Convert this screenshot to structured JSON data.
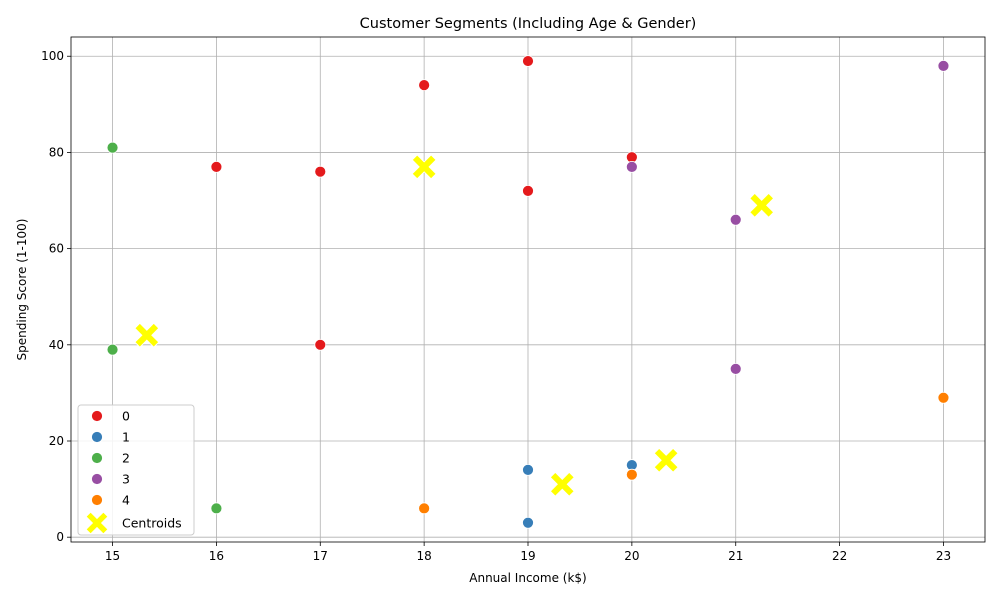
{
  "chart_data": {
    "type": "scatter",
    "title": "Customer Segments (Including Age & Gender)",
    "xlabel": "Annual Income (k$)",
    "ylabel": "Spending Score (1-100)",
    "xlim": [
      14.6,
      23.4
    ],
    "ylim": [
      -1,
      104
    ],
    "xticks": [
      15,
      16,
      17,
      18,
      19,
      20,
      21,
      22,
      23
    ],
    "yticks": [
      0,
      20,
      40,
      60,
      80,
      100
    ],
    "grid": true,
    "legend_position": "lower-left",
    "series": [
      {
        "name": "0",
        "color": "#e41a1c",
        "points": [
          [
            16,
            77
          ],
          [
            17,
            76
          ],
          [
            17,
            40
          ],
          [
            18,
            94
          ],
          [
            19,
            99
          ],
          [
            19,
            72
          ],
          [
            20,
            79
          ]
        ]
      },
      {
        "name": "1",
        "color": "#377eb8",
        "points": [
          [
            19,
            14
          ],
          [
            19,
            3
          ],
          [
            20,
            15
          ]
        ]
      },
      {
        "name": "2",
        "color": "#4daf4a",
        "points": [
          [
            15,
            81
          ],
          [
            15,
            39
          ],
          [
            16,
            6
          ]
        ]
      },
      {
        "name": "3",
        "color": "#984ea3",
        "points": [
          [
            20,
            77
          ],
          [
            21,
            66
          ],
          [
            21,
            35
          ],
          [
            23,
            98
          ]
        ]
      },
      {
        "name": "4",
        "color": "#ff7f00",
        "points": [
          [
            18,
            6
          ],
          [
            20,
            13
          ],
          [
            23,
            29
          ]
        ]
      }
    ],
    "centroids": {
      "name": "Centroids",
      "color": "#ffff00",
      "points": [
        [
          18.0,
          77
        ],
        [
          21.25,
          69
        ],
        [
          15.33,
          42
        ],
        [
          19.33,
          11
        ],
        [
          20.33,
          16
        ]
      ]
    }
  }
}
